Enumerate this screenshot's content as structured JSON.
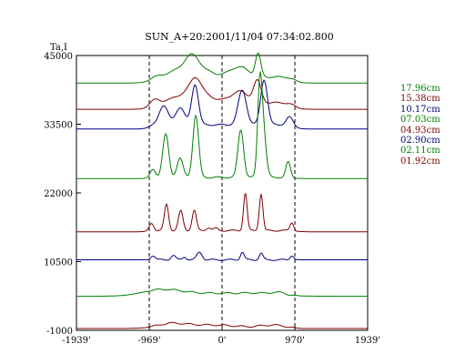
{
  "chart_data": {
    "type": "line",
    "title": "SUN_A+20:2001/11/04 07:34:02.800",
    "ylabel": "Ta,I",
    "xlabel": "",
    "x_ticks": [
      "-1939'",
      "-969'",
      "0'",
      "970'",
      "1939'"
    ],
    "x_tick_values": [
      -1939,
      -969,
      0,
      970,
      1939
    ],
    "y_ticks": [
      "45000",
      "33500",
      "22000",
      "10500",
      "-1000"
    ],
    "y_tick_values": [
      45000,
      33500,
      22000,
      10500,
      -1000
    ],
    "xlim": [
      -1939,
      1939
    ],
    "ylim": [
      -1000,
      45000
    ],
    "dashed_lines_x": [
      -969,
      0,
      970
    ],
    "grid": false,
    "legend_position": "right",
    "series": [
      {
        "name": "17.96cm",
        "color": "#008000",
        "offset": 40400,
        "shape": "flat",
        "peaks": [
          [
            -970,
            1000,
            1200
          ],
          [
            -420,
            1700,
            220
          ],
          [
            -400,
            2100,
            90
          ],
          [
            230,
            1700,
            120
          ],
          [
            480,
            3800,
            35
          ]
        ]
      },
      {
        "name": "15.38cm",
        "color": "#800000",
        "offset": 36000,
        "shape": "flat",
        "peaks": [
          [
            -970,
            1100,
            1200
          ],
          [
            -900,
            600,
            60
          ],
          [
            -380,
            2000,
            200
          ],
          [
            -350,
            2300,
            70
          ],
          [
            230,
            1900,
            110
          ],
          [
            470,
            3600,
            50
          ]
        ]
      },
      {
        "name": "10.17cm",
        "color": "#000080",
        "offset": 32700,
        "shape": "flat",
        "peaks": [
          [
            -960,
            700,
            1200
          ],
          [
            -780,
            3200,
            60
          ],
          [
            -560,
            2900,
            60
          ],
          [
            -360,
            6800,
            45
          ],
          [
            270,
            5800,
            55
          ],
          [
            560,
            7600,
            45
          ],
          [
            900,
            1400,
            45
          ]
        ]
      },
      {
        "name": "07.03cm",
        "color": "#008000",
        "offset": 24400,
        "shape": "flat",
        "peaks": [
          [
            -960,
            200,
            1200
          ],
          [
            -920,
            1400,
            35
          ],
          [
            -750,
            7200,
            40
          ],
          [
            -560,
            3200,
            40
          ],
          [
            -350,
            10400,
            38
          ],
          [
            250,
            8000,
            38
          ],
          [
            500,
            11600,
            28
          ],
          [
            540,
            9200,
            40
          ],
          [
            880,
            2600,
            30
          ]
        ]
      },
      {
        "name": "04.93cm",
        "color": "#800000",
        "offset": 15500,
        "shape": "flat",
        "peaks": [
          [
            -960,
            200,
            1200
          ],
          [
            -940,
            1300,
            30
          ],
          [
            -740,
            4400,
            28
          ],
          [
            -550,
            3300,
            30
          ],
          [
            -370,
            3400,
            28
          ],
          [
            -180,
            500,
            30
          ],
          [
            -80,
            400,
            25
          ],
          [
            310,
            6300,
            24
          ],
          [
            520,
            6200,
            24
          ],
          [
            930,
            1400,
            25
          ]
        ]
      },
      {
        "name": "02.90cm",
        "color": "#000080",
        "offset": 10800,
        "shape": "flat",
        "peaks": [
          [
            -920,
            700,
            30
          ],
          [
            -650,
            750,
            30
          ],
          [
            -500,
            500,
            25
          ],
          [
            -300,
            1300,
            35
          ],
          [
            270,
            1300,
            25
          ],
          [
            520,
            1100,
            25
          ],
          [
            930,
            700,
            25
          ]
        ]
      },
      {
        "name": "02.11cm",
        "color": "#008000",
        "offset": 4700,
        "shape": "flat",
        "peaks": [
          [
            -800,
            1000,
            260
          ],
          [
            -30,
            500,
            500
          ],
          [
            500,
            250,
            200
          ],
          [
            760,
            400,
            100
          ]
        ]
      },
      {
        "name": "01.92cm",
        "color": "#800000",
        "offset": -700,
        "shape": "flat",
        "peaks": [
          [
            -700,
            600,
            180
          ],
          [
            -380,
            500,
            300
          ],
          [
            100,
            350,
            260
          ],
          [
            600,
            400,
            140
          ],
          [
            780,
            300,
            120
          ]
        ]
      }
    ]
  }
}
